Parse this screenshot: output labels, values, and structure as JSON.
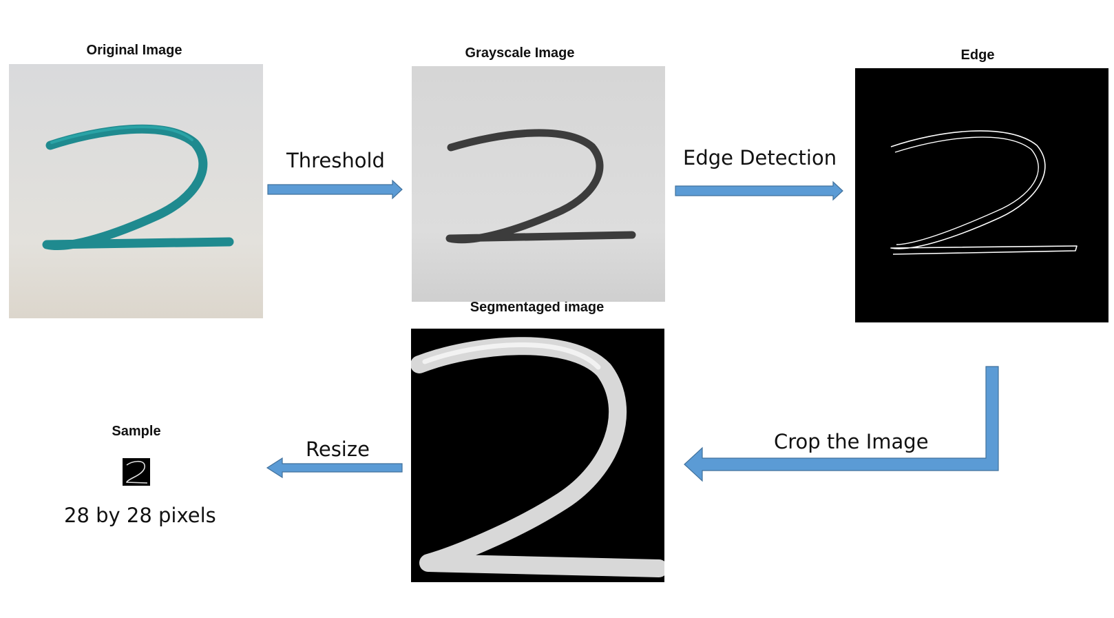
{
  "panels": {
    "original": {
      "title": "Original Image"
    },
    "grayscale": {
      "title": "Grayscale Image"
    },
    "edge": {
      "title": "Edge"
    },
    "segmented": {
      "title": "Segmentaged image"
    },
    "sample": {
      "title": "Sample",
      "caption": "28 by 28 pixels"
    }
  },
  "steps": {
    "threshold": "Threshold",
    "edge_detection": "Edge Detection",
    "crop": "Crop the Image",
    "resize": "Resize"
  },
  "colors": {
    "arrow_fill": "#5b9bd5",
    "arrow_stroke": "#41719c",
    "ink_teal": "#1f8a8f",
    "ink_gray": "#3c3c3c",
    "background_black": "#000000"
  }
}
